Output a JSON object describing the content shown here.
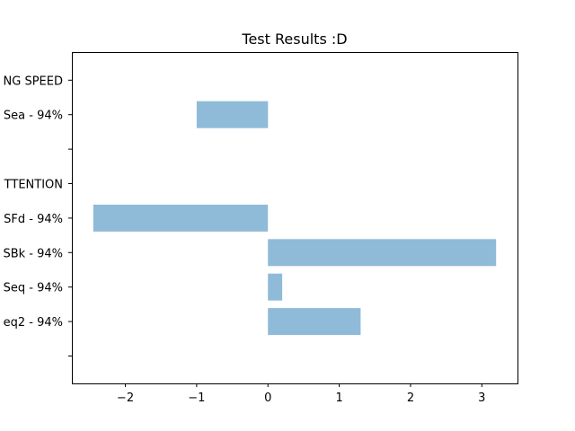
{
  "chart_data": {
    "type": "bar",
    "orientation": "horizontal",
    "title": "Test Results :D",
    "xlabel": "",
    "ylabel": "",
    "xlim": [
      -2.75,
      3.5
    ],
    "xticks": [
      -2,
      -1,
      0,
      1,
      2,
      3
    ],
    "xtick_labels": [
      "−2",
      "−1",
      "0",
      "1",
      "2",
      "3"
    ],
    "grid": false,
    "bar_color": "#8fbbd9",
    "categories": [
      "",
      "eq2 - 94%",
      "Seq - 94%",
      "SBk - 94%",
      "SFd - 94%",
      "TTENTION",
      "",
      "Sea - 94%",
      "NG SPEED"
    ],
    "values": [
      0,
      1.3,
      0.2,
      3.2,
      -2.45,
      0,
      0,
      -1.0,
      0
    ]
  }
}
